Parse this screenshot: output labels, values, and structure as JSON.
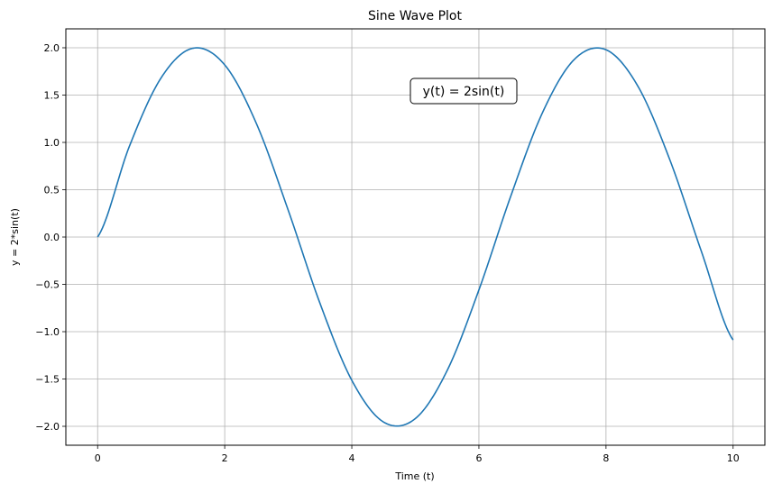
{
  "chart_data": {
    "type": "line",
    "title": "Sine Wave Plot",
    "xlabel": "Time (t)",
    "ylabel": "y = 2*sin(t)",
    "xlim": [
      -0.5,
      10.5
    ],
    "ylim": [
      -2.2,
      2.2
    ],
    "x_ticks": [
      0,
      2,
      4,
      6,
      8,
      10
    ],
    "x_tick_labels": [
      "0",
      "2",
      "4",
      "6",
      "8",
      "10"
    ],
    "y_ticks": [
      -2.0,
      -1.5,
      -1.0,
      -0.5,
      0.0,
      0.5,
      1.0,
      1.5,
      2.0
    ],
    "y_tick_labels": [
      "−2.0",
      "−1.5",
      "−1.0",
      "−0.5",
      "0.0",
      "0.5",
      "1.0",
      "1.5",
      "2.0"
    ],
    "grid": true,
    "legend": null,
    "annotation": {
      "text": "y(t) = 2sin(t)",
      "x": 5.0,
      "y": 1.5
    },
    "series": [
      {
        "name": "2sin(t)",
        "color": "#1f77b4",
        "x": [
          0,
          0.5,
          1,
          1.5,
          2,
          2.5,
          3,
          3.5,
          4,
          4.5,
          5,
          5.5,
          6,
          6.5,
          7,
          7.5,
          8,
          8.5,
          9,
          9.5,
          10
        ],
        "values": [
          0,
          0.959,
          1.683,
          1.995,
          1.819,
          1.197,
          0.282,
          -0.702,
          -1.514,
          -1.955,
          -1.918,
          -1.411,
          -0.559,
          0.43,
          1.314,
          1.876,
          1.979,
          1.596,
          0.824,
          -0.15,
          -1.088
        ]
      }
    ]
  }
}
